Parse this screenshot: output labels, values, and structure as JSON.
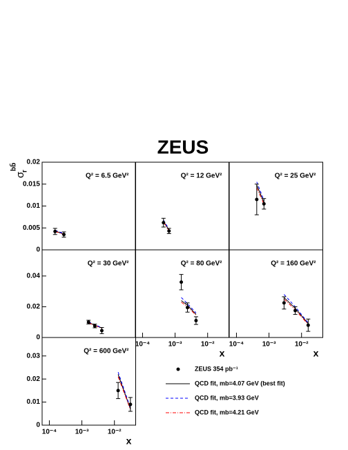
{
  "title": "ZEUS",
  "y_label": "σ",
  "y_label_sub": "r",
  "y_label_sup": "bb̄",
  "legend": [
    {
      "label": "ZEUS 354 pb⁻¹",
      "color": "#000000"
    },
    {
      "label": "QCD fit, mb=4.07 GeV (best fit)",
      "color": "#000000",
      "dash": "none"
    },
    {
      "label": "QCD fit, mb=3.93 GeV",
      "color": "#0000ff",
      "dash": "4,3"
    },
    {
      "label": "QCD fit, mb=4.21 GeV",
      "color": "#ff0000",
      "dash": "5,2,1,2"
    }
  ],
  "chart_data": [
    {
      "type": "scatter",
      "title": "Q² = 6.5 GeV²",
      "log_x": true,
      "xlim": [
        6e-05,
        0.045
      ],
      "ylim": [
        0,
        0.02
      ],
      "yticks": [
        0,
        0.005,
        0.01,
        0.015,
        0.02
      ],
      "x": [
        0.00015,
        0.00028
      ],
      "values": [
        0.0042,
        0.0035
      ],
      "errors": [
        0.0007,
        0.0006
      ],
      "fits": [
        {
          "x": [
            0.00015,
            0.00028
          ],
          "values": [
            0.0043,
            0.0036
          ]
        },
        {
          "x": [
            0.00015,
            0.00028
          ],
          "values": [
            0.0045,
            0.0037
          ]
        },
        {
          "x": [
            0.00015,
            0.00028
          ],
          "values": [
            0.0042,
            0.0035
          ]
        }
      ]
    },
    {
      "type": "scatter",
      "title": "Q² = 12 GeV²",
      "log_x": true,
      "xlim": [
        6e-05,
        0.045
      ],
      "ylim": [
        0,
        0.02
      ],
      "x": [
        0.00044,
        0.00065
      ],
      "values": [
        0.0062,
        0.0043
      ],
      "errors": [
        0.001,
        0.0006
      ],
      "fits": [
        {
          "x": [
            0.00044,
            0.00065
          ],
          "values": [
            0.0065,
            0.0045
          ]
        },
        {
          "x": [
            0.00044,
            0.00065
          ],
          "values": [
            0.0068,
            0.0047
          ]
        },
        {
          "x": [
            0.00044,
            0.00065
          ],
          "values": [
            0.0063,
            0.0044
          ]
        }
      ]
    },
    {
      "type": "scatter",
      "title": "Q² = 25 GeV²",
      "log_x": true,
      "xlim": [
        6e-05,
        0.045
      ],
      "ylim": [
        0,
        0.02
      ],
      "x": [
        0.00042,
        0.0007
      ],
      "values": [
        0.0115,
        0.0105
      ],
      "errors": [
        0.0035,
        0.0012
      ],
      "fits": [
        {
          "x": [
            0.00042,
            0.0007
          ],
          "values": [
            0.0148,
            0.0108
          ]
        },
        {
          "x": [
            0.00042,
            0.0007
          ],
          "values": [
            0.0155,
            0.0113
          ]
        },
        {
          "x": [
            0.00042,
            0.0007
          ],
          "values": [
            0.0142,
            0.0104
          ]
        }
      ]
    },
    {
      "type": "scatter",
      "title": "Q² = 30 GeV²",
      "log_x": true,
      "xlim": [
        6e-05,
        0.045
      ],
      "ylim": [
        0,
        0.057
      ],
      "yticks": [
        0,
        0.02,
        0.04
      ],
      "x": [
        0.0016,
        0.0025,
        0.0041
      ],
      "values": [
        0.01,
        0.0075,
        0.0045
      ],
      "errors": [
        0.0012,
        0.0012,
        0.002
      ],
      "fits": [
        {
          "x": [
            0.0016,
            0.0025,
            0.0041
          ],
          "values": [
            0.0098,
            0.008,
            0.0062
          ]
        },
        {
          "x": [
            0.0016,
            0.0025,
            0.0041
          ],
          "values": [
            0.0102,
            0.0083,
            0.0064
          ]
        },
        {
          "x": [
            0.0016,
            0.0025,
            0.0041
          ],
          "values": [
            0.0095,
            0.0078,
            0.006
          ]
        }
      ]
    },
    {
      "type": "scatter",
      "title": "Q² = 80 GeV²",
      "log_x": true,
      "xlim": [
        6e-05,
        0.045
      ],
      "ylim": [
        0,
        0.057
      ],
      "xticks": [
        {
          "value": 0.0001,
          "label": "10⁻⁴"
        },
        {
          "value": 0.001,
          "label": "10⁻³"
        },
        {
          "value": 0.01,
          "label": "10⁻²"
        }
      ],
      "x_label": "x",
      "x": [
        0.00155,
        0.0024,
        0.0044
      ],
      "values": [
        0.036,
        0.0195,
        0.011
      ],
      "errors": [
        0.005,
        0.003,
        0.0025
      ],
      "fits": [
        {
          "x": [
            0.00155,
            0.0024,
            0.0044
          ],
          "values": [
            0.024,
            0.021,
            0.015
          ]
        },
        {
          "x": [
            0.00155,
            0.0024,
            0.0044
          ],
          "values": [
            0.026,
            0.022,
            0.016
          ]
        },
        {
          "x": [
            0.00155,
            0.0024,
            0.0044
          ],
          "values": [
            0.023,
            0.02,
            0.0145
          ]
        }
      ]
    },
    {
      "type": "scatter",
      "title": "Q² = 160 GeV²",
      "log_x": true,
      "xlim": [
        6e-05,
        0.045
      ],
      "ylim": [
        0,
        0.057
      ],
      "xticks": [
        {
          "value": 0.0001,
          "label": "10⁻⁴"
        },
        {
          "value": 0.001,
          "label": "10⁻³"
        },
        {
          "value": 0.01,
          "label": "10⁻²"
        }
      ],
      "x_label": "x",
      "x": [
        0.0029,
        0.0064,
        0.016
      ],
      "values": [
        0.0225,
        0.0175,
        0.008
      ],
      "errors": [
        0.004,
        0.0025,
        0.004
      ],
      "fits": [
        {
          "x": [
            0.0029,
            0.0064,
            0.016
          ],
          "values": [
            0.026,
            0.019,
            0.009
          ]
        },
        {
          "x": [
            0.0029,
            0.0064,
            0.016
          ],
          "values": [
            0.028,
            0.02,
            0.0095
          ]
        },
        {
          "x": [
            0.0029,
            0.0064,
            0.016
          ],
          "values": [
            0.025,
            0.018,
            0.0085
          ]
        }
      ]
    },
    {
      "type": "scatter",
      "title": "Q² = 600 GeV²",
      "log_x": true,
      "xlim": [
        6e-05,
        0.045
      ],
      "ylim": [
        0,
        0.038
      ],
      "yticks": [
        0,
        0.01,
        0.02,
        0.03
      ],
      "xticks": [
        {
          "value": 0.0001,
          "label": "10⁻⁴"
        },
        {
          "value": 0.001,
          "label": "10⁻³"
        },
        {
          "value": 0.01,
          "label": "10⁻²"
        }
      ],
      "x_label": "x",
      "x": [
        0.013,
        0.031
      ],
      "values": [
        0.015,
        0.009
      ],
      "errors": [
        0.0035,
        0.003
      ],
      "fits": [
        {
          "x": [
            0.013,
            0.031
          ],
          "values": [
            0.022,
            0.007
          ]
        },
        {
          "x": [
            0.013,
            0.031
          ],
          "values": [
            0.023,
            0.0075
          ]
        },
        {
          "x": [
            0.013,
            0.031
          ],
          "values": [
            0.021,
            0.0068
          ]
        }
      ]
    }
  ]
}
